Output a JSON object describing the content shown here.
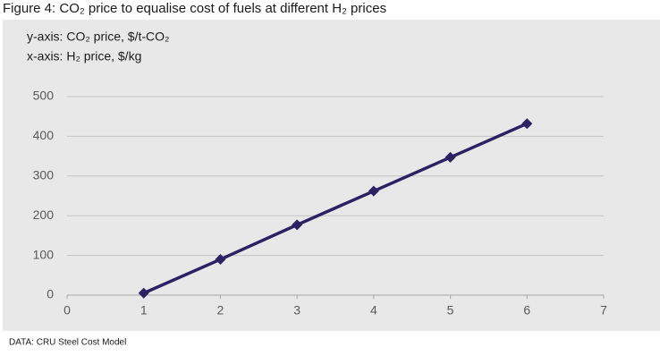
{
  "chart_data": {
    "type": "line",
    "title": "Figure 4: CO₂ price to equalise cost of fuels at different H₂ prices",
    "annotations": [
      "y-axis: CO₂ price, $/t-CO₂",
      "x-axis: H₂ price, $/kg"
    ],
    "source": "DATA: CRU Steel Cost Model",
    "x": [
      1,
      2,
      3,
      4,
      5,
      6
    ],
    "values": [
      5,
      90,
      177,
      262,
      347,
      432
    ],
    "color": "#2b2163",
    "xlim": [
      0,
      7
    ],
    "xticks": [
      0,
      1,
      2,
      3,
      4,
      5,
      6,
      7
    ],
    "ylim": [
      0,
      500
    ],
    "yticks": [
      0,
      100,
      200,
      300,
      400,
      500
    ],
    "grid": true
  }
}
